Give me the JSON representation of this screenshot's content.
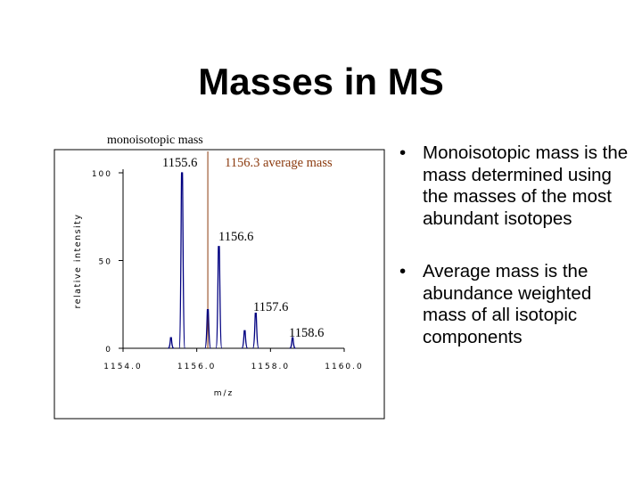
{
  "slide": {
    "title": "Masses in MS",
    "bullets": [
      {
        "text": "Monoisotopic mass is the mass determined using the masses of the most abundant isotopes"
      },
      {
        "text": "Average mass is the abundance weighted mass of all isotopic components"
      }
    ],
    "bullet_char": "•"
  },
  "chart_data": {
    "type": "line",
    "xlabel": "m/z",
    "ylabel": "relative intensity",
    "xlim": [
      1154.0,
      1160.0
    ],
    "ylim": [
      0,
      100
    ],
    "x_ticks": [
      {
        "value": 1154.0,
        "label": "1154.0"
      },
      {
        "value": 1156.0,
        "label": "1156.0"
      },
      {
        "value": 1158.0,
        "label": "1158.0"
      },
      {
        "value": 1160.0,
        "label": "1160.0"
      }
    ],
    "y_ticks": [
      {
        "value": 0,
        "label": "0"
      },
      {
        "value": 50,
        "label": "50"
      },
      {
        "value": 100,
        "label": "100"
      }
    ],
    "series": [
      {
        "color": "#000080",
        "peaks": [
          {
            "x": 1155.6,
            "y": 100,
            "label": "1155.6"
          },
          {
            "x": 1156.6,
            "y": 58,
            "label": "1156.6"
          },
          {
            "x": 1157.6,
            "y": 20,
            "label": "1157.6"
          },
          {
            "x": 1158.6,
            "y": 6,
            "label": "1158.6"
          }
        ],
        "minor_peaks": [
          {
            "x": 1155.3,
            "y": 6
          },
          {
            "x": 1156.3,
            "y": 22
          },
          {
            "x": 1157.3,
            "y": 10
          }
        ]
      }
    ],
    "annotations": {
      "monoisotopic_label": "monoisotopic mass",
      "average_label": "1156.3 average mass",
      "average_x": 1156.3,
      "average_color": "#8b3a0e"
    }
  }
}
